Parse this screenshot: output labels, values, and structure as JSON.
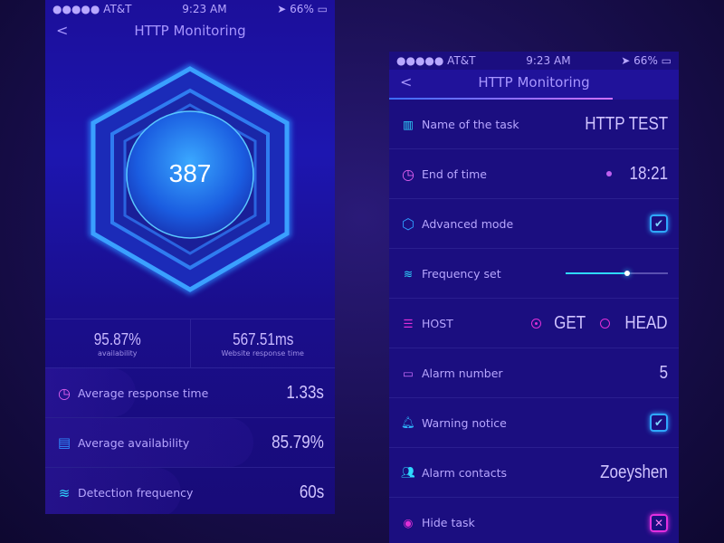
{
  "status": {
    "carrier": "●●●●● AT&T",
    "time": "9:23 AM",
    "battery": "66%"
  },
  "left": {
    "title": "HTTP Monitoring",
    "back": "<",
    "count": "387",
    "stats": [
      {
        "value": "95.87%",
        "label": "availability"
      },
      {
        "value": "567.51ms",
        "label": "Website response time"
      }
    ],
    "rows": [
      {
        "label": "Average response time",
        "value": "1.33s",
        "icon": "clock-icon"
      },
      {
        "label": "Average availability",
        "value": "85.79%",
        "icon": "document-icon"
      },
      {
        "label": "Detection frequency",
        "value": "60s",
        "icon": "layers-icon"
      }
    ]
  },
  "right": {
    "title": "HTTP Monitoring",
    "back": "<",
    "task_name": {
      "label": "Name of the task",
      "value": "HTTP TEST"
    },
    "end_time": {
      "label": "End of time",
      "value": "18:21"
    },
    "advanced": {
      "label": "Advanced mode",
      "checked": true
    },
    "frequency": {
      "label": "Frequency set",
      "level": 0.6
    },
    "host": {
      "label": "HOST",
      "options": [
        "GET",
        "HEAD"
      ],
      "selected": "GET"
    },
    "alarm_number": {
      "label": "Alarm number",
      "value": "5"
    },
    "warning": {
      "label": "Warning notice",
      "checked": true
    },
    "contacts": {
      "label": "Alarm contacts",
      "value": "Zoeyshen"
    },
    "hide": {
      "label": "Hide task",
      "checked": false
    }
  },
  "colors": {
    "accent_cyan": "#2fd8ff",
    "accent_magenta": "#e02fd8",
    "text": "#b7a6ff"
  }
}
